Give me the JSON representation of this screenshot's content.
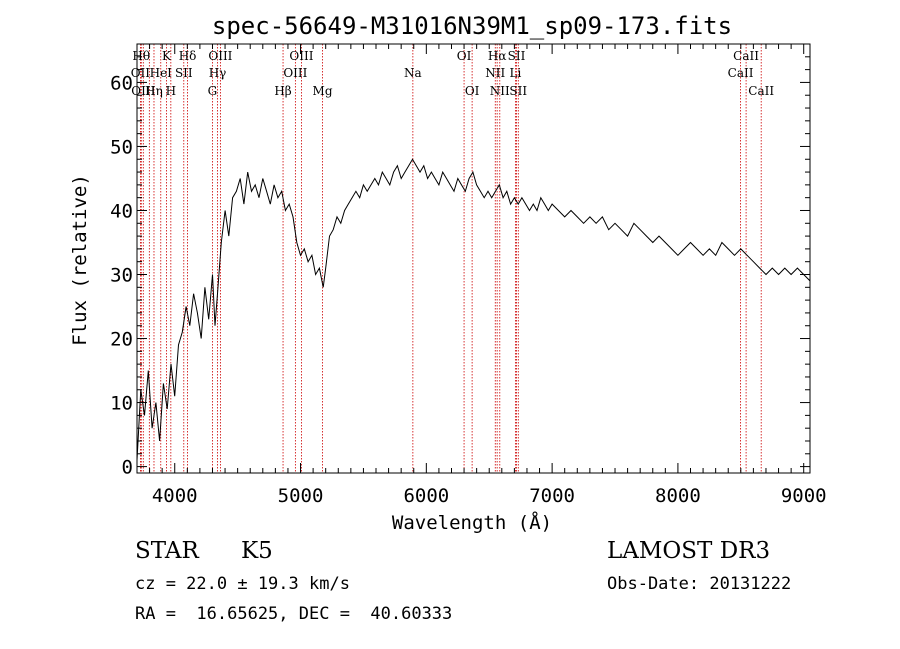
{
  "chart_data": {
    "type": "line",
    "title": "spec-56649-M31016N39M1_sp09-173.fits",
    "xlabel": "Wavelength (Å)",
    "ylabel": "Flux (relative)",
    "xlim": [
      3700,
      9050
    ],
    "ylim": [
      -1,
      66
    ],
    "xticks": [
      4000,
      5000,
      6000,
      7000,
      8000,
      9000
    ],
    "yticks": [
      0,
      10,
      20,
      30,
      40,
      50,
      60
    ],
    "grid": false,
    "line_color": "#000000",
    "marker_color": "#cc0000",
    "series": [
      {
        "x": [
          3700,
          3730,
          3760,
          3790,
          3820,
          3850,
          3880,
          3910,
          3940,
          3970,
          4000,
          4030,
          4060,
          4090,
          4120,
          4150,
          4180,
          4210,
          4240,
          4270,
          4300,
          4320,
          4340,
          4370,
          4400,
          4430,
          4460,
          4490,
          4520,
          4550,
          4580,
          4610,
          4640,
          4670,
          4700,
          4730,
          4760,
          4790,
          4820,
          4850,
          4880,
          4910,
          4940,
          4970,
          5000,
          5030,
          5060,
          5090,
          5120,
          5150,
          5180,
          5200,
          5230,
          5260,
          5290,
          5320,
          5350,
          5380,
          5410,
          5440,
          5470,
          5500,
          5530,
          5560,
          5590,
          5620,
          5650,
          5680,
          5710,
          5740,
          5770,
          5800,
          5830,
          5860,
          5890,
          5920,
          5950,
          5980,
          6010,
          6040,
          6070,
          6100,
          6130,
          6160,
          6190,
          6220,
          6250,
          6280,
          6310,
          6340,
          6370,
          6400,
          6430,
          6460,
          6490,
          6520,
          6550,
          6580,
          6610,
          6640,
          6670,
          6700,
          6730,
          6760,
          6790,
          6820,
          6850,
          6880,
          6910,
          6940,
          6970,
          7000,
          7050,
          7100,
          7150,
          7200,
          7250,
          7300,
          7350,
          7400,
          7450,
          7500,
          7550,
          7600,
          7650,
          7700,
          7750,
          7800,
          7850,
          7900,
          7950,
          8000,
          8050,
          8100,
          8150,
          8200,
          8250,
          8300,
          8350,
          8400,
          8450,
          8500,
          8550,
          8600,
          8650,
          8700,
          8750,
          8800,
          8850,
          8900,
          8950,
          9000,
          9050
        ],
        "y": [
          1,
          12,
          8,
          15,
          6,
          10,
          4,
          13,
          9,
          16,
          11,
          19,
          21,
          25,
          22,
          27,
          24,
          20,
          28,
          23,
          30,
          22,
          27,
          35,
          40,
          36,
          42,
          43,
          45,
          41,
          46,
          43,
          44,
          42,
          45,
          43,
          41,
          44,
          42,
          43,
          40,
          41,
          39,
          35,
          33,
          34,
          32,
          33,
          30,
          31,
          28,
          31,
          36,
          37,
          39,
          38,
          40,
          41,
          42,
          43,
          42,
          44,
          43,
          44,
          45,
          44,
          46,
          45,
          44,
          46,
          47,
          45,
          46,
          47,
          48,
          47,
          46,
          47,
          45,
          46,
          45,
          44,
          46,
          45,
          44,
          43,
          45,
          44,
          43,
          45,
          46,
          44,
          43,
          42,
          43,
          42,
          43,
          44,
          42,
          43,
          41,
          42,
          41,
          42,
          41,
          40,
          41,
          40,
          42,
          41,
          40,
          41,
          40,
          39,
          40,
          39,
          38,
          39,
          38,
          39,
          37,
          38,
          37,
          36,
          38,
          37,
          36,
          35,
          36,
          35,
          34,
          33,
          34,
          35,
          34,
          33,
          34,
          33,
          35,
          34,
          33,
          34,
          33,
          32,
          31,
          30,
          31,
          30,
          31,
          30,
          31,
          30,
          29
        ]
      }
    ],
    "markers": [
      {
        "wavelength": 3734,
        "label": "Hθ",
        "row": 1
      },
      {
        "wavelength": 3727,
        "label": "OII",
        "row": 2
      },
      {
        "wavelength": 3750,
        "label": "OIII",
        "row": 3
      },
      {
        "wavelength": 3798,
        "label": "",
        "row": 0
      },
      {
        "wavelength": 3835,
        "label": "Hη",
        "row": 3
      },
      {
        "wavelength": 3889,
        "label": "HeI",
        "row": 2
      },
      {
        "wavelength": 3934,
        "label": "K",
        "row": 1
      },
      {
        "wavelength": 3969,
        "label": "H",
        "row": 3
      },
      {
        "wavelength": 4072,
        "label": "SII",
        "row": 2
      },
      {
        "wavelength": 4102,
        "label": "Hδ",
        "row": 1
      },
      {
        "wavelength": 4300,
        "label": "G",
        "row": 3
      },
      {
        "wavelength": 4340,
        "label": "Hγ",
        "row": 2
      },
      {
        "wavelength": 4363,
        "label": "OIII",
        "row": 1
      },
      {
        "wavelength": 4861,
        "label": "Hβ",
        "row": 3
      },
      {
        "wavelength": 4959,
        "label": "OIII",
        "row": 2
      },
      {
        "wavelength": 5007,
        "label": "OIII",
        "row": 1
      },
      {
        "wavelength": 5175,
        "label": "Mg",
        "row": 3
      },
      {
        "wavelength": 5893,
        "label": "Na",
        "row": 2
      },
      {
        "wavelength": 6300,
        "label": "OI",
        "row": 1
      },
      {
        "wavelength": 6364,
        "label": "OI",
        "row": 3
      },
      {
        "wavelength": 6548,
        "label": "NII",
        "row": 2
      },
      {
        "wavelength": 6563,
        "label": "Hα",
        "row": 1
      },
      {
        "wavelength": 6584,
        "label": "NII",
        "row": 3
      },
      {
        "wavelength": 6708,
        "label": "Li",
        "row": 2
      },
      {
        "wavelength": 6717,
        "label": "SII",
        "row": 1
      },
      {
        "wavelength": 6731,
        "label": "SII",
        "row": 3
      },
      {
        "wavelength": 8498,
        "label": "CaII",
        "row": 2
      },
      {
        "wavelength": 8542,
        "label": "CaII",
        "row": 1
      },
      {
        "wavelength": 8662,
        "label": "CaII",
        "row": 3
      }
    ]
  },
  "info": {
    "object_class": "STAR",
    "subclass": "K5",
    "survey": "LAMOST DR3",
    "redshift": "cz = 22.0 ± 19.3 km/s",
    "obs_date": "Obs-Date: 20131222",
    "coords": "RA =  16.65625, DEC =  40.60333"
  }
}
